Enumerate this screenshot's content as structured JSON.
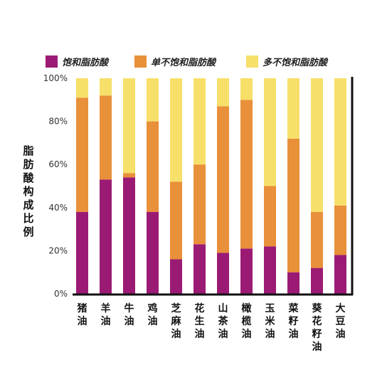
{
  "chart_data": {
    "type": "bar",
    "stacked": true,
    "orientation": "vertical",
    "ylabel": "脂肪酸构成比例",
    "ylim": [
      0,
      100
    ],
    "yticks": [
      "0%",
      "20%",
      "40%",
      "60%",
      "80%",
      "100%"
    ],
    "categories": [
      "猪油",
      "羊油",
      "牛油",
      "鸡油",
      "芝麻油",
      "花生油",
      "山茶油",
      "橄榄油",
      "玉米油",
      "菜籽油",
      "葵花籽油",
      "大豆油"
    ],
    "series": [
      {
        "name": "饱和脂肪酸",
        "color": "#9b1b74",
        "values": [
          38,
          53,
          54,
          38,
          16,
          23,
          19,
          21,
          22,
          10,
          12,
          18
        ]
      },
      {
        "name": "单不饱和脂肪酸",
        "color": "#e8903a",
        "values": [
          53,
          39,
          2,
          42,
          36,
          37,
          68,
          69,
          28,
          62,
          26,
          23
        ]
      },
      {
        "name": "多不饱和脂肪酸",
        "color": "#f7e06a",
        "values": [
          9,
          8,
          44,
          20,
          48,
          40,
          13,
          10,
          50,
          28,
          62,
          59
        ]
      }
    ],
    "legend": "top",
    "grid": false
  }
}
